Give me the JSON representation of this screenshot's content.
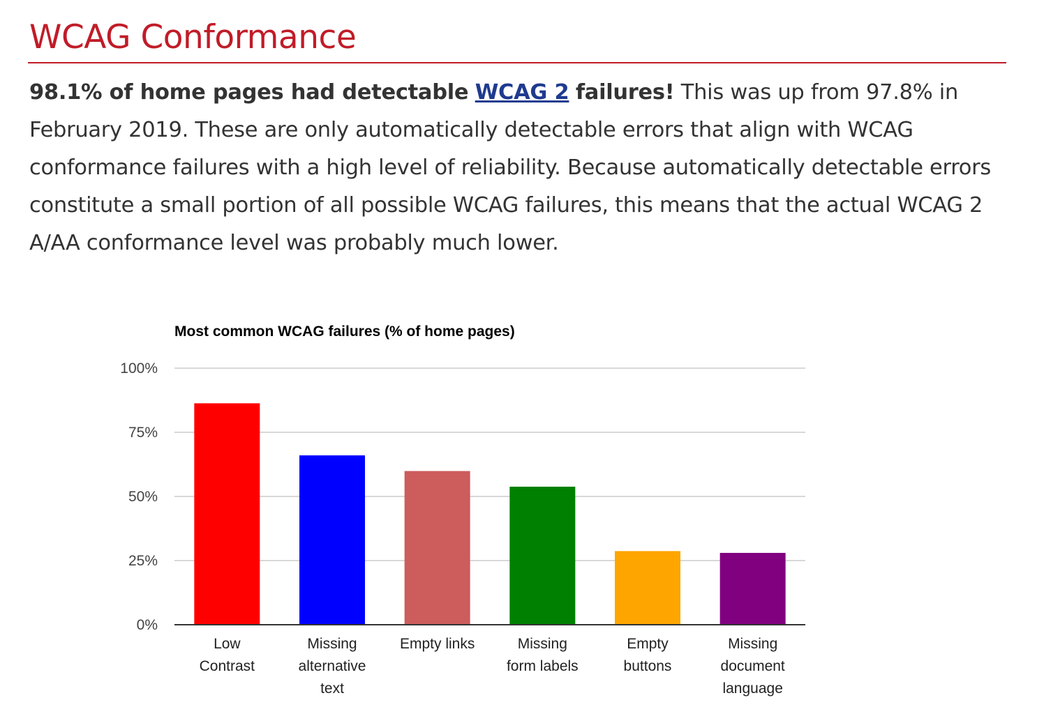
{
  "page": {
    "heading": "WCAG Conformance",
    "intro_bold_lead": "98.1% of home pages had detectable",
    "intro_link": "WCAG 2",
    "intro_bold_tail": "failures!",
    "intro_rest": "This was up from 97.8% in February 2019. These are only automatically detectable errors that align with WCAG conformance failures with a high level of reliability. Because automatically detectable errors constitute a small portion of all possible WCAG failures, this means that the actual WCAG 2 A/AA conformance level was probably much lower."
  },
  "colors": {
    "heading": "#c01c28",
    "link": "#1f3b8f",
    "body_text": "#333333"
  },
  "chart_data": {
    "type": "bar",
    "title": "Most common WCAG failures (% of home pages)",
    "xlabel": "",
    "ylabel": "",
    "ylim": [
      0,
      100
    ],
    "yticks": [
      0,
      25,
      50,
      75,
      100
    ],
    "ytick_labels": [
      "0%",
      "25%",
      "50%",
      "75%",
      "100%"
    ],
    "grid": true,
    "legend": "none",
    "categories": [
      [
        "Low",
        "Contrast"
      ],
      [
        "Missing",
        "alternative",
        "text"
      ],
      [
        "Empty links"
      ],
      [
        "Missing",
        "form labels"
      ],
      [
        "Empty",
        "buttons"
      ],
      [
        "Missing",
        "document",
        "language"
      ]
    ],
    "values": [
      86.3,
      66.0,
      59.9,
      53.8,
      28.7,
      28.0
    ],
    "bar_colors": [
      "#ff0000",
      "#0000ff",
      "#cd5c5c",
      "#008000",
      "#ffa500",
      "#800080"
    ]
  }
}
